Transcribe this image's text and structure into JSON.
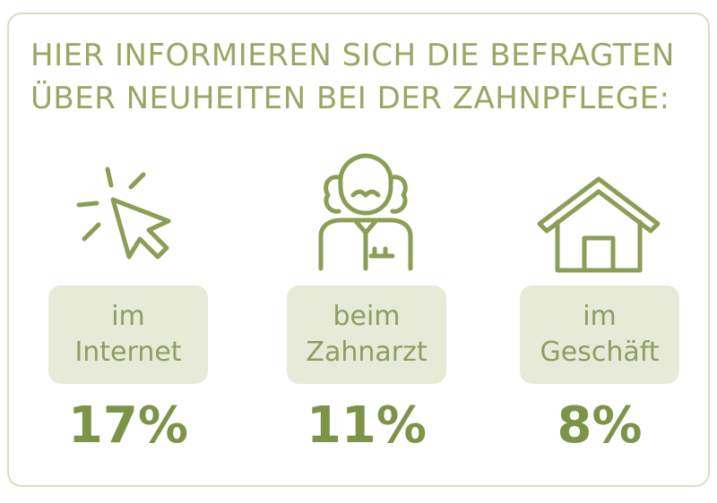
{
  "title": {
    "line1": "HIER INFORMIEREN SICH DIE BEFRAGTEN",
    "line2": "ÜBER NEUHEITEN BEI DER ZAHNPFLEGE:"
  },
  "colors": {
    "accent": "#8a9f55",
    "title": "#97a865",
    "pill_bg": "#e6ead6",
    "frame": "#d9dfc2"
  },
  "chart_data": {
    "type": "bar",
    "unit": "%",
    "categories": [
      "im Internet",
      "beim Zahnarzt",
      "im Geschäft"
    ],
    "values": [
      17,
      11,
      8
    ],
    "items": [
      {
        "icon": "cursor-click-icon",
        "label_line1": "im",
        "label_line2": "Internet",
        "value_label": "17%"
      },
      {
        "icon": "dentist-person-icon",
        "label_line1": "beim",
        "label_line2": "Zahnarzt",
        "value_label": "11%"
      },
      {
        "icon": "house-icon",
        "label_line1": "im",
        "label_line2": "Geschäft",
        "value_label": "8%"
      }
    ]
  }
}
